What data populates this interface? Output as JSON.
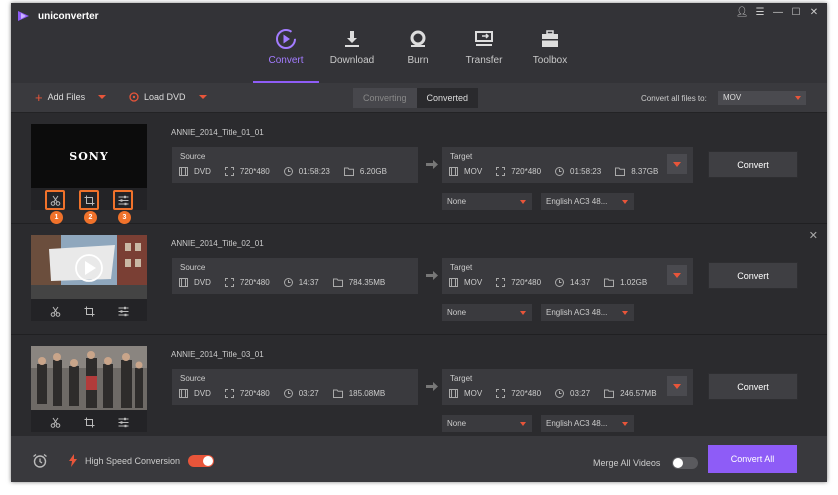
{
  "app": {
    "title": "uniconverter"
  },
  "nav": [
    {
      "label": "Convert",
      "icon": "convert-icon",
      "active": true
    },
    {
      "label": "Download",
      "icon": "download-icon",
      "active": false
    },
    {
      "label": "Burn",
      "icon": "burn-icon",
      "active": false
    },
    {
      "label": "Transfer",
      "icon": "transfer-icon",
      "active": false
    },
    {
      "label": "Toolbox",
      "icon": "toolbox-icon",
      "active": false
    }
  ],
  "toolbar": {
    "add_files": "Add Files",
    "load_dvd": "Load DVD",
    "tabs": [
      "Converting",
      "Converted"
    ],
    "convert_all_label": "Convert all files to:",
    "format": "MOV"
  },
  "source_label": "Source",
  "target_label": "Target",
  "convert_label": "Convert",
  "edit_badges": [
    "1",
    "2",
    "3"
  ],
  "thumb_text": "SONY",
  "files": [
    {
      "name": "ANNIE_2014_Title_01_01",
      "source": {
        "format": "DVD",
        "resolution": "720*480",
        "duration": "01:58:23",
        "size": "6.20GB"
      },
      "target": {
        "format": "MOV",
        "resolution": "720*480",
        "duration": "01:58:23",
        "size": "8.37GB"
      },
      "subtitle": "None",
      "audio": "English AC3 48..."
    },
    {
      "name": "ANNIE_2014_Title_02_01",
      "source": {
        "format": "DVD",
        "resolution": "720*480",
        "duration": "14:37",
        "size": "784.35MB"
      },
      "target": {
        "format": "MOV",
        "resolution": "720*480",
        "duration": "14:37",
        "size": "1.02GB"
      },
      "subtitle": "None",
      "audio": "English AC3 48..."
    },
    {
      "name": "ANNIE_2014_Title_03_01",
      "source": {
        "format": "DVD",
        "resolution": "720*480",
        "duration": "03:27",
        "size": "185.08MB"
      },
      "target": {
        "format": "MOV",
        "resolution": "720*480",
        "duration": "03:27",
        "size": "246.57MB"
      },
      "subtitle": "None",
      "audio": "English AC3 48..."
    }
  ],
  "footer": {
    "high_speed_label": "High Speed Conversion",
    "high_speed_on": true,
    "merge_label": "Merge All Videos",
    "merge_on": false,
    "convert_all": "Convert All"
  },
  "colors": {
    "accent": "#8e5cf7",
    "orange": "#e8553a",
    "background": "#2b2b2e"
  }
}
